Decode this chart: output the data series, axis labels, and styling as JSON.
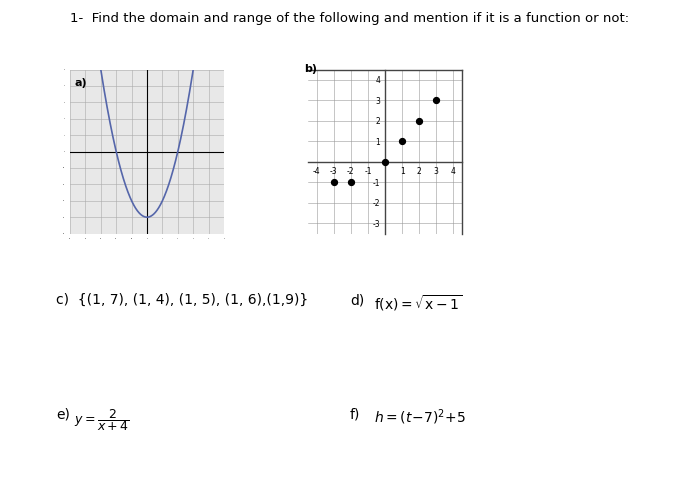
{
  "title": "1-  Find the domain and range of the following and mention if it is a function or not:",
  "title_fontsize": 9.5,
  "bg_color": "#ffffff",
  "graph_a_label": "a)",
  "graph_b_label": "b)",
  "label_c": "c)  {(1, 7), (1, 4), (1, 5), (1, 6),(1,9)}",
  "label_d_prefix": "d)",
  "label_e_prefix": "e)",
  "label_f_prefix": "f)",
  "scatter_b_points": [
    [
      -3,
      -1
    ],
    [
      -2,
      -1
    ],
    [
      0,
      0
    ],
    [
      1,
      1
    ],
    [
      2,
      2
    ],
    [
      3,
      3
    ]
  ],
  "curve_color": "#5566aa",
  "dot_color": "#000000",
  "grid_color": "#bbbbbb",
  "axis_color": "#000000",
  "parabola_a": 1,
  "parabola_b": 0,
  "parabola_c": -4
}
